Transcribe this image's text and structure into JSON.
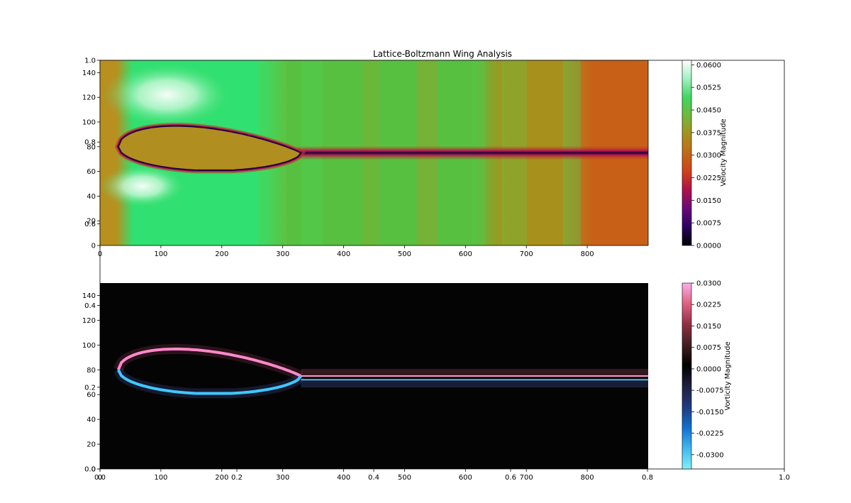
{
  "figure": {
    "title": "Lattice-Boltzmann Wing Analysis",
    "outer_axes": {
      "x_ticks": [
        "0.0",
        "0.2",
        "0.4",
        "0.6",
        "0.8",
        "1.0"
      ],
      "y_ticks": [
        "0.0",
        "0.2",
        "0.4",
        "0.6",
        "0.8",
        "1.0"
      ]
    }
  },
  "chart_data": [
    {
      "type": "heatmap",
      "name": "",
      "quantity": "Velocity Magnitude",
      "xlim": [
        0,
        900
      ],
      "ylim": [
        0,
        150
      ],
      "x_ticks": [
        "0",
        "100",
        "200",
        "300",
        "400",
        "500",
        "600",
        "700",
        "800"
      ],
      "y_ticks": [
        "0",
        "20",
        "40",
        "60",
        "80",
        "100",
        "120",
        "140"
      ],
      "colorbar": {
        "label": "Velocity Magnitude",
        "range": [
          0.0,
          0.0615
        ],
        "ticks": [
          "0.0000",
          "0.0075",
          "0.0150",
          "0.0225",
          "0.0300",
          "0.0375",
          "0.0450",
          "0.0525",
          "0.0600"
        ],
        "colormap": [
          "#000000",
          "#2a0060",
          "#6a0a7a",
          "#b0104a",
          "#d0401a",
          "#c06a18",
          "#a8901c",
          "#70b83a",
          "#3ed860",
          "#a0f0c0",
          "#ffffff"
        ]
      },
      "wing": {
        "leading_edge_x": 30,
        "trailing_edge_x": 330,
        "center_y": 80,
        "max_upper_y": 100,
        "min_lower_y": 61,
        "wake_y": 75
      },
      "background_colors": {
        "upstream": "#b89020",
        "fast_zone": "#30e070",
        "mid_field": "#58c040",
        "downstream": "#a8901c",
        "far_downstream": "#c86018",
        "wing_core": "#b08e20"
      }
    },
    {
      "type": "heatmap",
      "name": "",
      "quantity": "Vorticity Magnitude",
      "xlim": [
        0,
        900
      ],
      "ylim": [
        0,
        150
      ],
      "x_ticks": [
        "0",
        "100",
        "200",
        "300",
        "400",
        "500",
        "600",
        "700",
        "800"
      ],
      "y_ticks": [
        "0",
        "20",
        "40",
        "60",
        "80",
        "100",
        "120",
        "140"
      ],
      "colorbar": {
        "label": "Vorticity Magnitude",
        "range": [
          -0.035,
          0.03
        ],
        "ticks": [
          "0.0300",
          "0.0225",
          "0.0150",
          "0.0075",
          "0.0000",
          "-0.0075",
          "-0.0150",
          "-0.0225",
          "-0.0300"
        ],
        "colormap": [
          "#80f0f8",
          "#40b8f0",
          "#1070d0",
          "#203a80",
          "#202040",
          "#000000",
          "#402020",
          "#903040",
          "#e06080",
          "#f8b0e8"
        ]
      },
      "upper_edge_color": "#ff88cc",
      "lower_edge_color": "#40c8ff",
      "background": "#040404"
    }
  ]
}
